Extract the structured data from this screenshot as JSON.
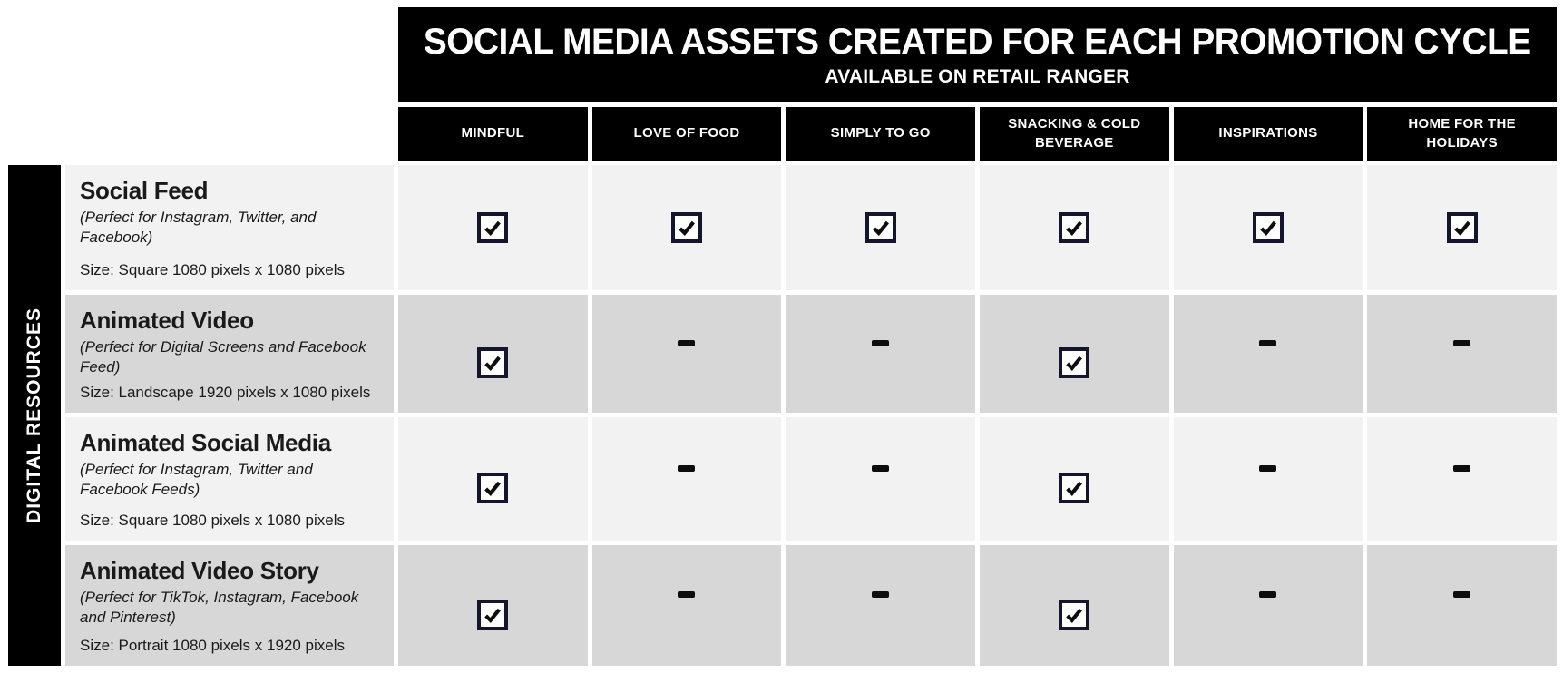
{
  "header": {
    "title": "SOCIAL MEDIA ASSETS CREATED FOR EACH PROMOTION CYCLE",
    "subtitle": "AVAILABLE ON RETAIL RANGER"
  },
  "sidebar": {
    "label": "DIGITAL RESOURCES"
  },
  "columns": [
    {
      "label": "MINDFUL"
    },
    {
      "label": "LOVE OF FOOD"
    },
    {
      "label": "SIMPLY TO GO"
    },
    {
      "label": "SNACKING & COLD BEVERAGE"
    },
    {
      "label": "INSPIRATIONS"
    },
    {
      "label": "HOME FOR THE HOLIDAYS"
    }
  ],
  "rows": [
    {
      "title": "Social Feed",
      "description": "(Perfect for Instagram, Twitter, and Facebook)",
      "size": "Size: Square 1080 pixels x 1080 pixels",
      "cells": [
        "check",
        "check",
        "check",
        "check",
        "check",
        "check"
      ]
    },
    {
      "title": "Animated Video",
      "description": "(Perfect for Digital Screens and Facebook Feed)",
      "size": "Size: Landscape 1920 pixels x 1080 pixels",
      "cells": [
        "check",
        "dash",
        "dash",
        "check",
        "dash",
        "dash"
      ]
    },
    {
      "title": "Animated Social Media",
      "description": "(Perfect for Instagram, Twitter and Facebook Feeds)",
      "size": "Size: Square 1080 pixels x 1080 pixels",
      "cells": [
        "check",
        "dash",
        "dash",
        "check",
        "dash",
        "dash"
      ]
    },
    {
      "title": "Animated Video Story",
      "description": "(Perfect for TikTok, Instagram, Facebook and Pinterest)",
      "size": "Size: Portrait 1080 pixels x 1920 pixels",
      "cells": [
        "check",
        "dash",
        "dash",
        "check",
        "dash",
        "dash"
      ]
    }
  ],
  "icons": {
    "check": "checked-checkbox",
    "dash": "not-available-dash"
  },
  "colors": {
    "bar_bg": "#000000",
    "bar_text": "#ffffff",
    "row_light": "#f2f2f2",
    "row_alt": "#d7d7d7",
    "checkbox_border": "#15152d",
    "mark": "#0d0d0d",
    "text": "#1a1a1a"
  }
}
